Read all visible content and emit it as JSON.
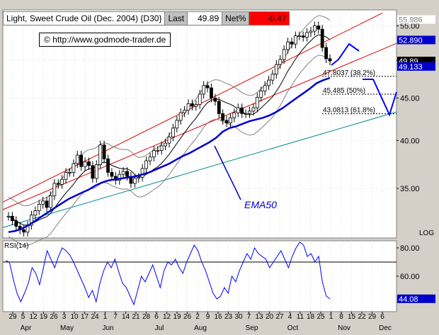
{
  "legend": {
    "title": "Light, Sweet Crude Oil (Dec. 2004) {D30}",
    "last_label": "Last",
    "last_value": "49.89",
    "net_label": "Net%",
    "net_value": "-0.47"
  },
  "copyright": "©  http://www.godmode-trader.de",
  "colors": {
    "background": "#ffffff",
    "frame": "#d4d0c8",
    "price": "#000000",
    "ema50": "#0000cc",
    "channel": "#dd0000",
    "trendline": "#008b8b",
    "bollinger": "#808080",
    "rsi": "#0000ff",
    "forecast": "#0000ff"
  },
  "chart_data": [
    {
      "type": "candlestick",
      "title": "Light, Sweet Crude Oil (Dec. 2004) {D30}",
      "x_labels": [
        "29",
        "5",
        "12",
        "19",
        "26",
        "3",
        "10",
        "17",
        "24",
        "1",
        "7",
        "14",
        "21",
        "28",
        "6",
        "12",
        "19",
        "26",
        "2",
        "9",
        "16",
        "23",
        "30",
        "7",
        "13",
        "20",
        "27",
        "4",
        "11",
        "18",
        "25",
        "1",
        "8",
        "15",
        "22",
        "29",
        "6"
      ],
      "month_labels": [
        "Apr",
        "May",
        "Jun",
        "Jul",
        "Aug",
        "Sep",
        "Oct",
        "Nov",
        "Dec"
      ],
      "y_scale": "log",
      "y_ticks": [
        "35.00",
        "40.00",
        "45.00",
        "50.00",
        "55.00"
      ],
      "ylim": [
        30.5,
        57.5
      ],
      "scale_label": "LOG",
      "price_series": [
        32.4,
        32.0,
        31.5,
        31.2,
        31.0,
        31.6,
        32.5,
        32.9,
        33.5,
        33.8,
        33.2,
        34.3,
        35.5,
        35.4,
        35.9,
        36.6,
        36.6,
        37.5,
        38.4,
        37.2,
        37.7,
        37.3,
        36.0,
        37.4,
        39.5,
        38.0,
        36.6,
        36.2,
        35.8,
        36.4,
        36.7,
        36.2,
        35.5,
        36.0,
        36.1,
        37.0,
        37.8,
        38.2,
        38.9,
        38.9,
        39.4,
        39.7,
        40.4,
        41.4,
        42.3,
        43.2,
        43.5,
        44.3,
        44.0,
        44.2,
        45.5,
        46.6,
        46.3,
        45.0,
        44.6,
        43.1,
        42.3,
        42.0,
        42.6,
        43.2,
        43.8,
        43.1,
        43.1,
        43.4,
        43.8,
        45.1,
        45.9,
        46.6,
        47.3,
        48.1,
        49.4,
        50.1,
        51.5,
        52.6,
        52.3,
        53.5,
        53.5,
        53.3,
        54.0,
        54.2,
        55.0,
        54.5,
        51.8,
        50.2,
        49.9
      ],
      "ema50": [
        31.0,
        31.1,
        31.3,
        31.6,
        32.0,
        32.4,
        32.8,
        33.2,
        33.6,
        34.0,
        34.3,
        34.6,
        34.9,
        35.3,
        35.6,
        35.8,
        35.9,
        36.0,
        36.1,
        36.2,
        36.4,
        36.6,
        36.9,
        37.2,
        37.5,
        37.9,
        38.3,
        38.6,
        39.0,
        39.4,
        39.8,
        40.3,
        41.0,
        41.4,
        41.6,
        41.9,
        42.2,
        42.4,
        42.6,
        42.9,
        43.3,
        43.8,
        44.4,
        45.0,
        45.6,
        46.2,
        46.9,
        47.3,
        47.6
      ],
      "series": [
        {
          "name": "EMA50",
          "ref": "ema50"
        }
      ],
      "price_labels": [
        {
          "text": "55.986",
          "value": 55.986,
          "style": "plain"
        },
        {
          "text": "52.890",
          "value": 52.89,
          "style": "blue"
        },
        {
          "text": "49.89",
          "value": 49.89,
          "style": "black"
        },
        {
          "text": "49.133",
          "value": 49.133,
          "style": "blue"
        }
      ],
      "fib_levels": [
        {
          "label": "47.8037 (38.2%)",
          "value": 47.8037
        },
        {
          "label": "45.485 (50%)",
          "value": 45.485
        },
        {
          "label": "43.0813 (61.8%)",
          "value": 43.0813
        }
      ],
      "annotation": "EMA50"
    },
    {
      "type": "line",
      "title": "RSI(14)",
      "y_ticks": [
        "60.00",
        "80.00"
      ],
      "ylim": [
        35,
        85
      ],
      "reference_line": 70,
      "last_value_label": "44.08",
      "last_value": 44.08,
      "values": [
        71,
        70,
        58,
        48,
        42,
        48,
        55,
        66,
        62,
        54,
        66,
        78,
        72,
        66,
        74,
        80,
        78,
        75,
        70,
        64,
        58,
        52,
        45,
        50,
        42,
        55,
        64,
        70,
        66,
        72,
        63,
        55,
        52,
        46,
        40,
        50,
        60,
        56,
        62,
        68,
        60,
        52,
        64,
        70,
        68,
        72,
        66,
        62,
        70,
        76,
        82,
        78,
        70,
        64,
        56,
        48,
        44,
        46,
        52,
        48,
        60,
        56,
        64,
        70,
        76,
        72,
        80,
        76,
        74,
        72,
        66,
        70,
        74,
        78,
        72,
        66,
        74,
        80,
        84,
        82,
        74,
        76,
        70,
        74,
        56,
        46,
        44
      ]
    }
  ]
}
